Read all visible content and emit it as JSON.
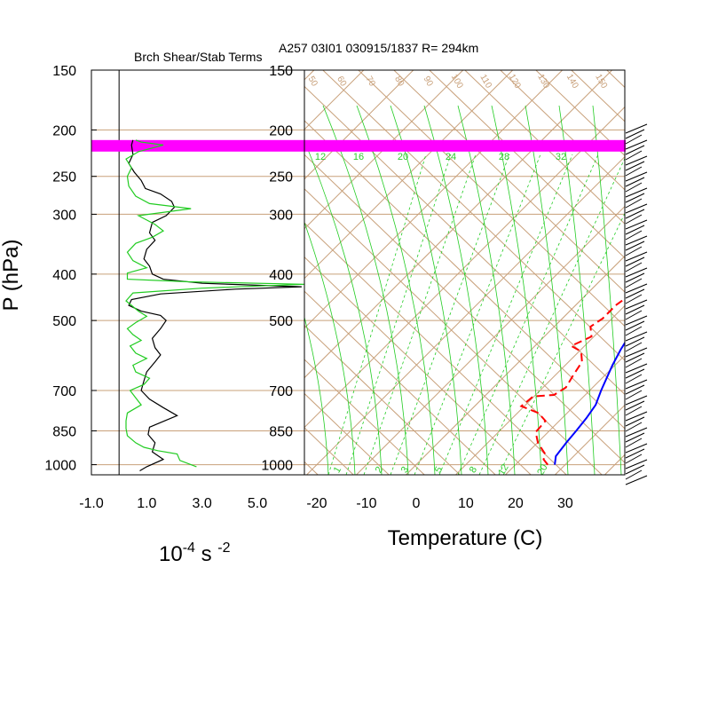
{
  "header": {
    "left_title": "Brch Shear/Stab Terms",
    "right_title": "A257 03I01 030915/1837 R= 294km"
  },
  "axes": {
    "y_label": "P (hPa)",
    "x_label_temp": "Temperature (C)",
    "x_label_left_base": "10",
    "x_label_left_exp1": "-4",
    "x_label_left_mid": " s ",
    "x_label_left_exp2": "-2"
  },
  "colors": {
    "tan": "#c8a07a",
    "green": "#22cc22",
    "blue": "#0000ff",
    "red": "#ff0000",
    "magenta": "#ff00ff"
  },
  "chart_data": [
    {
      "type": "line",
      "title": "Brch Shear/Stab Terms",
      "xlabel": "10^-4 s^-2",
      "ylabel": "P (hPa)",
      "y_scale": "log",
      "ylim": [
        1050,
        150
      ],
      "xlim": [
        -1.0,
        6.7
      ],
      "x_ticks": [
        "-1.0",
        "1.0",
        "3.0",
        "5.0"
      ],
      "x_tick_values": [
        -1.0,
        1.0,
        3.0,
        5.0
      ],
      "y_ticks": [
        "150",
        "200",
        "250",
        "300",
        "400",
        "500",
        "700",
        "850",
        "1000"
      ],
      "y_tick_values": [
        150,
        200,
        250,
        300,
        400,
        500,
        700,
        850,
        1000
      ],
      "series": [
        {
          "color": "black",
          "points": [
            [
              0.5,
              210
            ],
            [
              0.45,
              215
            ],
            [
              0.5,
              225
            ],
            [
              0.35,
              235
            ],
            [
              0.55,
              245
            ],
            [
              0.8,
              255
            ],
            [
              0.95,
              265
            ],
            [
              1.5,
              272
            ],
            [
              1.9,
              282
            ],
            [
              2.0,
              290
            ],
            [
              1.7,
              302
            ],
            [
              1.2,
              312
            ],
            [
              1.1,
              328
            ],
            [
              1.3,
              340
            ],
            [
              1.0,
              355
            ],
            [
              0.9,
              372
            ],
            [
              1.1,
              385
            ],
            [
              1.2,
              400
            ],
            [
              1.6,
              410
            ],
            [
              3.0,
              418
            ],
            [
              6.6,
              425
            ],
            [
              4.2,
              430
            ],
            [
              1.5,
              440
            ],
            [
              0.45,
              452
            ],
            [
              0.35,
              465
            ],
            [
              0.8,
              478
            ],
            [
              1.5,
              488
            ],
            [
              1.7,
              500
            ],
            [
              1.5,
              520
            ],
            [
              1.2,
              545
            ],
            [
              1.3,
              570
            ],
            [
              1.5,
              590
            ],
            [
              1.3,
              610
            ],
            [
              1.0,
              640
            ],
            [
              0.9,
              668
            ],
            [
              0.8,
              700
            ],
            [
              1.1,
              730
            ],
            [
              1.6,
              760
            ],
            [
              2.1,
              790
            ],
            [
              1.6,
              812
            ],
            [
              1.1,
              835
            ],
            [
              1.05,
              865
            ],
            [
              1.3,
              900
            ],
            [
              1.2,
              940
            ],
            [
              1.6,
              975
            ],
            [
              1.0,
              1010
            ],
            [
              0.75,
              1030
            ]
          ]
        },
        {
          "color": "green",
          "points": [
            [
              0.6,
              210
            ],
            [
              0.8,
              212
            ],
            [
              1.6,
              215
            ],
            [
              0.7,
              222
            ],
            [
              0.25,
              230
            ],
            [
              0.45,
              240
            ],
            [
              0.3,
              250
            ],
            [
              0.35,
              262
            ],
            [
              0.6,
              275
            ],
            [
              1.1,
              285
            ],
            [
              2.6,
              292
            ],
            [
              0.7,
              302
            ],
            [
              1.3,
              315
            ],
            [
              1.6,
              325
            ],
            [
              1.2,
              335
            ],
            [
              0.6,
              345
            ],
            [
              0.3,
              360
            ],
            [
              0.5,
              375
            ],
            [
              1.0,
              388
            ],
            [
              0.3,
              398
            ],
            [
              0.3,
              410
            ],
            [
              2.5,
              415
            ],
            [
              6.7,
              420
            ],
            [
              3.0,
              428
            ],
            [
              0.5,
              438
            ],
            [
              0.25,
              455
            ],
            [
              0.7,
              478
            ],
            [
              1.0,
              490
            ],
            [
              0.6,
              505
            ],
            [
              0.3,
              520
            ],
            [
              0.5,
              535
            ],
            [
              0.8,
              550
            ],
            [
              0.4,
              565
            ],
            [
              0.6,
              585
            ],
            [
              1.0,
              600
            ],
            [
              0.5,
              620
            ],
            [
              0.6,
              640
            ],
            [
              1.1,
              660
            ],
            [
              0.9,
              680
            ],
            [
              0.4,
              700
            ],
            [
              0.6,
              725
            ],
            [
              0.8,
              750
            ],
            [
              0.3,
              780
            ],
            [
              0.25,
              810
            ],
            [
              0.25,
              840
            ],
            [
              0.3,
              870
            ],
            [
              0.6,
              900
            ],
            [
              0.9,
              920
            ],
            [
              1.4,
              935
            ],
            [
              2.1,
              950
            ],
            [
              2.2,
              980
            ],
            [
              2.8,
              1010
            ]
          ]
        }
      ]
    },
    {
      "type": "line",
      "title": "A257 03I01 030915/1837 R= 294km",
      "xlabel": "Temperature (C)",
      "ylabel": "P (hPa)",
      "y_scale": "log",
      "ylim": [
        1050,
        150
      ],
      "xlim": [
        -22.5,
        42
      ],
      "x_ticks": [
        "-20",
        "-10",
        "0",
        "10",
        "20",
        "30"
      ],
      "x_tick_values": [
        -20,
        -10,
        0,
        10,
        20,
        30
      ],
      "y_ticks": [
        "150",
        "200",
        "250",
        "300",
        "400",
        "500",
        "700",
        "850",
        "1000"
      ],
      "y_tick_values": [
        150,
        200,
        250,
        300,
        400,
        500,
        700,
        850,
        1000
      ],
      "highlight_band_hpa": [
        210,
        222
      ],
      "annotations": {
        "mixing_ratio_labels": [
          "12",
          "16",
          "20",
          "24",
          "28",
          "32"
        ],
        "moist_adiabat_labels": [
          "1",
          "2",
          "3",
          "5",
          "8",
          "12",
          "20"
        ],
        "theta_labels": [
          "50",
          "60",
          "70",
          "80",
          "90",
          "100",
          "110",
          "120",
          "130",
          "140",
          "150"
        ]
      },
      "series": [
        {
          "name": "Temperature",
          "color": "blue",
          "style": "solid",
          "points": [
            [
              27.9,
              1000
            ],
            [
              26.4,
              960
            ],
            [
              25.8,
              900
            ],
            [
              25.4,
              850
            ],
            [
              24.9,
              800
            ],
            [
              24.1,
              750
            ],
            [
              22.3,
              700
            ],
            [
              19.5,
              620
            ],
            [
              18.0,
              575
            ],
            [
              16.7,
              530
            ],
            [
              14.5,
              480
            ],
            [
              12.7,
              450
            ],
            [
              13.8,
              415
            ],
            [
              15.8,
              405
            ],
            [
              12.9,
              330
            ],
            [
              9.9,
              260
            ],
            [
              8.2,
              235
            ],
            [
              5.3,
              215
            ],
            [
              3.2,
              200
            ]
          ]
        },
        {
          "name": "Dewpoint",
          "color": "red",
          "style": "dashed",
          "points": [
            [
              26.5,
              1000
            ],
            [
              24.6,
              975
            ],
            [
              23.8,
              950
            ],
            [
              20.1,
              900
            ],
            [
              17.5,
              855
            ],
            [
              17.2,
              810
            ],
            [
              14.2,
              780
            ],
            [
              9.4,
              755
            ],
            [
              9.8,
              720
            ],
            [
              13.7,
              715
            ],
            [
              14.6,
              690
            ],
            [
              13.6,
              650
            ],
            [
              12.7,
              610
            ],
            [
              10.4,
              580
            ],
            [
              7.3,
              565
            ],
            [
              9.5,
              540
            ],
            [
              7.3,
              515
            ],
            [
              8.1,
              495
            ],
            [
              8.1,
              465
            ],
            [
              9.1,
              435
            ],
            [
              13.9,
              420
            ],
            [
              12.9,
              360
            ],
            [
              8.0,
              270
            ],
            [
              6.2,
              250
            ],
            [
              3.4,
              235
            ],
            [
              2.5,
              230
            ]
          ]
        }
      ]
    }
  ]
}
